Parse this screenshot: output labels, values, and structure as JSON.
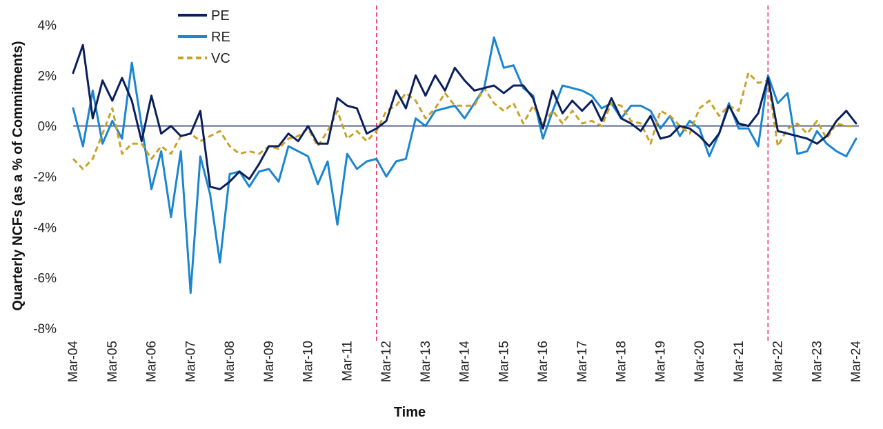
{
  "chart_data": {
    "type": "line",
    "title": "",
    "xlabel": "Time",
    "ylabel": "Quarterly NCFs (as a % of Commitments)",
    "ylim": [
      -8,
      4
    ],
    "yticks": [
      -8,
      -6,
      -4,
      -2,
      0,
      2,
      4
    ],
    "ytick_labels": [
      "-8%",
      "-6%",
      "-4%",
      "-2%",
      "0%",
      "2%",
      "4%"
    ],
    "xlim": [
      2004.0,
      2024.0
    ],
    "xticks": [
      2004,
      2005,
      2006,
      2007,
      2008,
      2009,
      2010,
      2011,
      2012,
      2013,
      2014,
      2015,
      2016,
      2017,
      2018,
      2019,
      2020,
      2021,
      2022,
      2023,
      2024
    ],
    "xtick_labels": [
      "Mar-04",
      "Mar-05",
      "Mar-06",
      "Mar-07",
      "Mar-08",
      "Mar-09",
      "Mar-10",
      "Mar-11",
      "Mar-12",
      "Mar-13",
      "Mar-14",
      "Mar-15",
      "Mar-16",
      "Mar-17",
      "Mar-18",
      "Mar-19",
      "Mar-20",
      "Mar-21",
      "Mar-22",
      "Mar-23",
      "Mar-24"
    ],
    "vertical_reference_lines": [
      2011.75,
      2021.75
    ],
    "zero_line": true,
    "grid": false,
    "legend_position": "top-left",
    "colors": {
      "PE": "#0b1f5c",
      "RE": "#1a85d0",
      "VC": "#c9a227",
      "reference": "#e8336d",
      "zero": "#0b1f5c"
    },
    "series": [
      {
        "name": "PE",
        "style": "solid",
        "x": [
          2004.0,
          2004.25,
          2004.5,
          2004.75,
          2005.0,
          2005.25,
          2005.5,
          2005.75,
          2006.0,
          2006.25,
          2006.5,
          2006.75,
          2007.0,
          2007.25,
          2007.5,
          2007.75,
          2008.0,
          2008.25,
          2008.5,
          2008.75,
          2009.0,
          2009.25,
          2009.5,
          2009.75,
          2010.0,
          2010.25,
          2010.5,
          2010.75,
          2011.0,
          2011.25,
          2011.5,
          2011.75,
          2012.0,
          2012.25,
          2012.5,
          2012.75,
          2013.0,
          2013.25,
          2013.5,
          2013.75,
          2014.0,
          2014.25,
          2014.5,
          2014.75,
          2015.0,
          2015.25,
          2015.5,
          2015.75,
          2016.0,
          2016.25,
          2016.5,
          2016.75,
          2017.0,
          2017.25,
          2017.5,
          2017.75,
          2018.0,
          2018.25,
          2018.5,
          2018.75,
          2019.0,
          2019.25,
          2019.5,
          2019.75,
          2020.0,
          2020.25,
          2020.5,
          2020.75,
          2021.0,
          2021.25,
          2021.5,
          2021.75,
          2022.0,
          2022.25,
          2022.5,
          2022.75,
          2023.0,
          2023.25,
          2023.5,
          2023.75,
          2024.0
        ],
        "values": [
          2.1,
          3.2,
          0.3,
          1.8,
          1.0,
          1.9,
          1.0,
          -0.6,
          1.2,
          -0.3,
          0.0,
          -0.4,
          -0.3,
          0.6,
          -2.4,
          -2.5,
          -2.2,
          -1.8,
          -2.1,
          -1.5,
          -0.8,
          -0.8,
          -0.3,
          -0.6,
          0.0,
          -0.7,
          -0.7,
          1.1,
          0.8,
          0.7,
          -0.3,
          -0.1,
          0.2,
          1.4,
          0.7,
          2.0,
          1.2,
          2.0,
          1.4,
          2.3,
          1.8,
          1.4,
          1.5,
          1.6,
          1.3,
          1.6,
          1.6,
          1.1,
          -0.1,
          1.4,
          0.5,
          1.0,
          0.6,
          1.0,
          0.2,
          1.1,
          0.3,
          0.1,
          -0.2,
          0.4,
          -0.5,
          -0.4,
          0.0,
          -0.1,
          -0.4,
          -0.8,
          -0.3,
          0.8,
          0.1,
          0.0,
          0.5,
          1.9,
          -0.2,
          -0.3,
          -0.4,
          -0.5,
          -0.7,
          -0.4,
          0.2,
          0.6,
          0.1
        ]
      },
      {
        "name": "RE",
        "style": "solid",
        "x": [
          2004.0,
          2004.25,
          2004.5,
          2004.75,
          2005.0,
          2005.25,
          2005.5,
          2005.75,
          2006.0,
          2006.25,
          2006.5,
          2006.75,
          2007.0,
          2007.25,
          2007.5,
          2007.75,
          2008.0,
          2008.25,
          2008.5,
          2008.75,
          2009.0,
          2009.25,
          2009.5,
          2009.75,
          2010.0,
          2010.25,
          2010.5,
          2010.75,
          2011.0,
          2011.25,
          2011.5,
          2011.75,
          2012.0,
          2012.25,
          2012.5,
          2012.75,
          2013.0,
          2013.25,
          2013.5,
          2013.75,
          2014.0,
          2014.25,
          2014.5,
          2014.75,
          2015.0,
          2015.25,
          2015.5,
          2015.75,
          2016.0,
          2016.25,
          2016.5,
          2016.75,
          2017.0,
          2017.25,
          2017.5,
          2017.75,
          2018.0,
          2018.25,
          2018.5,
          2018.75,
          2019.0,
          2019.25,
          2019.5,
          2019.75,
          2020.0,
          2020.25,
          2020.5,
          2020.75,
          2021.0,
          2021.25,
          2021.5,
          2021.75,
          2022.0,
          2022.25,
          2022.5,
          2022.75,
          2023.0,
          2023.25,
          2023.5,
          2023.75,
          2024.0
        ],
        "values": [
          0.7,
          -0.8,
          1.4,
          -0.7,
          0.2,
          -0.5,
          2.5,
          0.0,
          -2.5,
          -1.0,
          -3.6,
          -1.0,
          -6.6,
          -1.2,
          -2.7,
          -5.4,
          -1.9,
          -1.8,
          -2.4,
          -1.8,
          -1.7,
          -2.2,
          -0.8,
          -1.0,
          -1.2,
          -2.3,
          -1.4,
          -3.9,
          -1.1,
          -1.7,
          -1.4,
          -1.3,
          -2.0,
          -1.4,
          -1.3,
          0.3,
          0.0,
          0.6,
          0.7,
          0.8,
          0.3,
          0.9,
          1.5,
          3.5,
          2.3,
          2.4,
          1.5,
          1.2,
          -0.5,
          0.6,
          1.6,
          1.5,
          1.4,
          1.2,
          0.7,
          0.9,
          0.3,
          0.8,
          0.8,
          0.6,
          -0.1,
          0.4,
          -0.4,
          0.2,
          -0.1,
          -1.2,
          -0.3,
          0.9,
          -0.1,
          -0.1,
          -0.8,
          2.0,
          0.9,
          1.3,
          -1.1,
          -1.0,
          -0.2,
          -0.7,
          -1.0,
          -1.2,
          -0.5
        ]
      },
      {
        "name": "VC",
        "style": "dashed",
        "x": [
          2004.0,
          2004.25,
          2004.5,
          2004.75,
          2005.0,
          2005.25,
          2005.5,
          2005.75,
          2006.0,
          2006.25,
          2006.5,
          2006.75,
          2007.0,
          2007.25,
          2007.5,
          2007.75,
          2008.0,
          2008.25,
          2008.5,
          2008.75,
          2009.0,
          2009.25,
          2009.5,
          2009.75,
          2010.0,
          2010.25,
          2010.5,
          2010.75,
          2011.0,
          2011.25,
          2011.5,
          2011.75,
          2012.0,
          2012.25,
          2012.5,
          2012.75,
          2013.0,
          2013.25,
          2013.5,
          2013.75,
          2014.0,
          2014.25,
          2014.5,
          2014.75,
          2015.0,
          2015.25,
          2015.5,
          2015.75,
          2016.0,
          2016.25,
          2016.5,
          2016.75,
          2017.0,
          2017.25,
          2017.5,
          2017.75,
          2018.0,
          2018.25,
          2018.5,
          2018.75,
          2019.0,
          2019.25,
          2019.5,
          2019.75,
          2020.0,
          2020.25,
          2020.5,
          2020.75,
          2021.0,
          2021.25,
          2021.5,
          2021.75,
          2022.0,
          2022.25,
          2022.5,
          2022.75,
          2023.0,
          2023.25,
          2023.5,
          2023.75,
          2024.0
        ],
        "values": [
          -1.3,
          -1.7,
          -1.3,
          -0.3,
          0.7,
          -1.1,
          -0.7,
          -0.7,
          -1.3,
          -0.8,
          -1.1,
          -0.4,
          -0.3,
          -0.6,
          -0.4,
          -0.2,
          -0.8,
          -1.1,
          -1.0,
          -1.1,
          -0.8,
          -0.9,
          -0.5,
          -0.4,
          -0.1,
          -0.8,
          -0.2,
          0.6,
          -0.5,
          -0.2,
          -0.6,
          -0.2,
          0.6,
          0.8,
          1.3,
          1.0,
          0.3,
          0.7,
          1.3,
          0.8,
          0.8,
          0.8,
          1.5,
          0.9,
          0.6,
          0.9,
          0.1,
          0.8,
          0.1,
          0.6,
          0.1,
          0.6,
          0.1,
          0.2,
          0.0,
          0.9,
          0.8,
          0.2,
          0.1,
          -0.7,
          0.6,
          0.4,
          0.0,
          -0.3,
          0.7,
          1.0,
          0.4,
          0.8,
          0.6,
          2.1,
          1.7,
          1.8,
          -0.8,
          -0.1,
          0.1,
          -0.3,
          0.2,
          -0.5,
          0.1,
          0.0,
          0.0
        ]
      }
    ]
  }
}
